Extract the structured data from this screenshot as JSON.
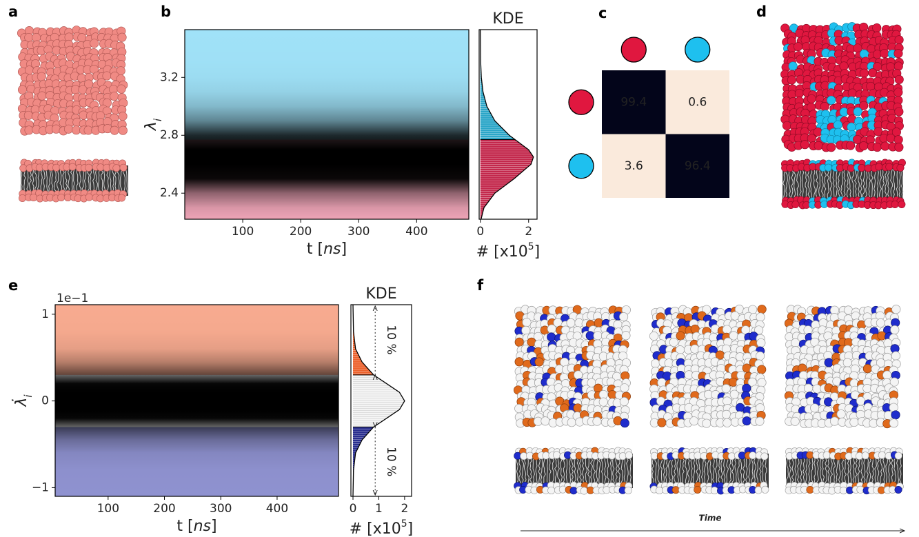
{
  "panel_labels": [
    "a",
    "b",
    "c",
    "d",
    "e",
    "f"
  ],
  "time_label": "Time",
  "chart_data": [
    {
      "type": "trace",
      "xlim": [
        0,
        490
      ],
      "xticks": [
        100,
        200,
        300,
        400
      ],
      "ylim": [
        2.22,
        3.53
      ],
      "yticks": [
        2.4,
        2.8,
        3.2
      ],
      "xlabel": [
        "t [",
        "ns",
        "]"
      ],
      "ylabel": [
        "λ",
        "i"
      ],
      "bounds": [
        2.77
      ],
      "region_colors": [
        "#f2a7ba",
        "#a0e2f8"
      ],
      "trace_color": "#000000",
      "marginal": {
        "type": "kde",
        "title": "KDE",
        "xlim": [
          -0.05,
          2.35
        ],
        "xticks": [
          0,
          2
        ],
        "xlabel": [
          "# [x10",
          "5",
          "]"
        ],
        "y": [
          2.22,
          2.3,
          2.4,
          2.5,
          2.6,
          2.65,
          2.7,
          2.8,
          2.9,
          3.0,
          3.1,
          3.2,
          3.3,
          3.53
        ],
        "density": [
          0.03,
          0.15,
          0.6,
          1.4,
          2.1,
          2.2,
          2.0,
          1.2,
          0.6,
          0.27,
          0.11,
          0.04,
          0.015,
          0
        ],
        "fill_colors": [
          "#c3284c",
          "#2ba6c8"
        ],
        "line_color": "#000000"
      }
    },
    {
      "type": "heatmap",
      "values": [
        [
          99.4,
          0.6
        ],
        [
          3.6,
          96.4
        ]
      ],
      "cell_colors": [
        [
          "#03051a",
          "#faeadc"
        ],
        [
          "#faeadc",
          "#03051a"
        ]
      ],
      "class_colors": [
        "#e0173f",
        "#1ec0ef"
      ]
    },
    {
      "type": "trace",
      "xlim": [
        6,
        509
      ],
      "xticks": [
        100,
        200,
        300,
        400
      ],
      "ylim": [
        -1.1,
        1.11
      ],
      "yticks": [
        {
          "value": -1,
          "label": "−1"
        },
        0,
        1
      ],
      "offset_label": "1e−1",
      "xlabel": [
        "t [",
        "ns",
        "]"
      ],
      "ylabel": [
        "λ̇",
        "i"
      ],
      "bounds": [
        -0.3,
        0.3
      ],
      "region_colors": [
        "#8f92d0",
        "#ffffff",
        "#f8ab90"
      ],
      "trace_color": "#000000",
      "marginal": {
        "type": "kde",
        "title": "KDE",
        "xlim": [
          -0.08,
          2.27
        ],
        "xticks": [
          0,
          1,
          2
        ],
        "xlabel": [
          "# [x10",
          "5",
          "]"
        ],
        "y": [
          -1.1,
          -0.8,
          -0.6,
          -0.45,
          -0.3,
          -0.2,
          -0.1,
          0,
          0.1,
          0.2,
          0.3,
          0.45,
          0.6,
          0.8,
          1.11
        ],
        "density": [
          0,
          0.02,
          0.1,
          0.35,
          0.8,
          1.3,
          1.8,
          2.0,
          1.8,
          1.3,
          0.8,
          0.35,
          0.1,
          0.02,
          0
        ],
        "fill_colors": [
          "#2a2f8f",
          "#f4f4f4",
          "#ec622d"
        ],
        "line_color": "#000000",
        "annotations": [
          "10 %",
          "10 %"
        ]
      }
    }
  ]
}
